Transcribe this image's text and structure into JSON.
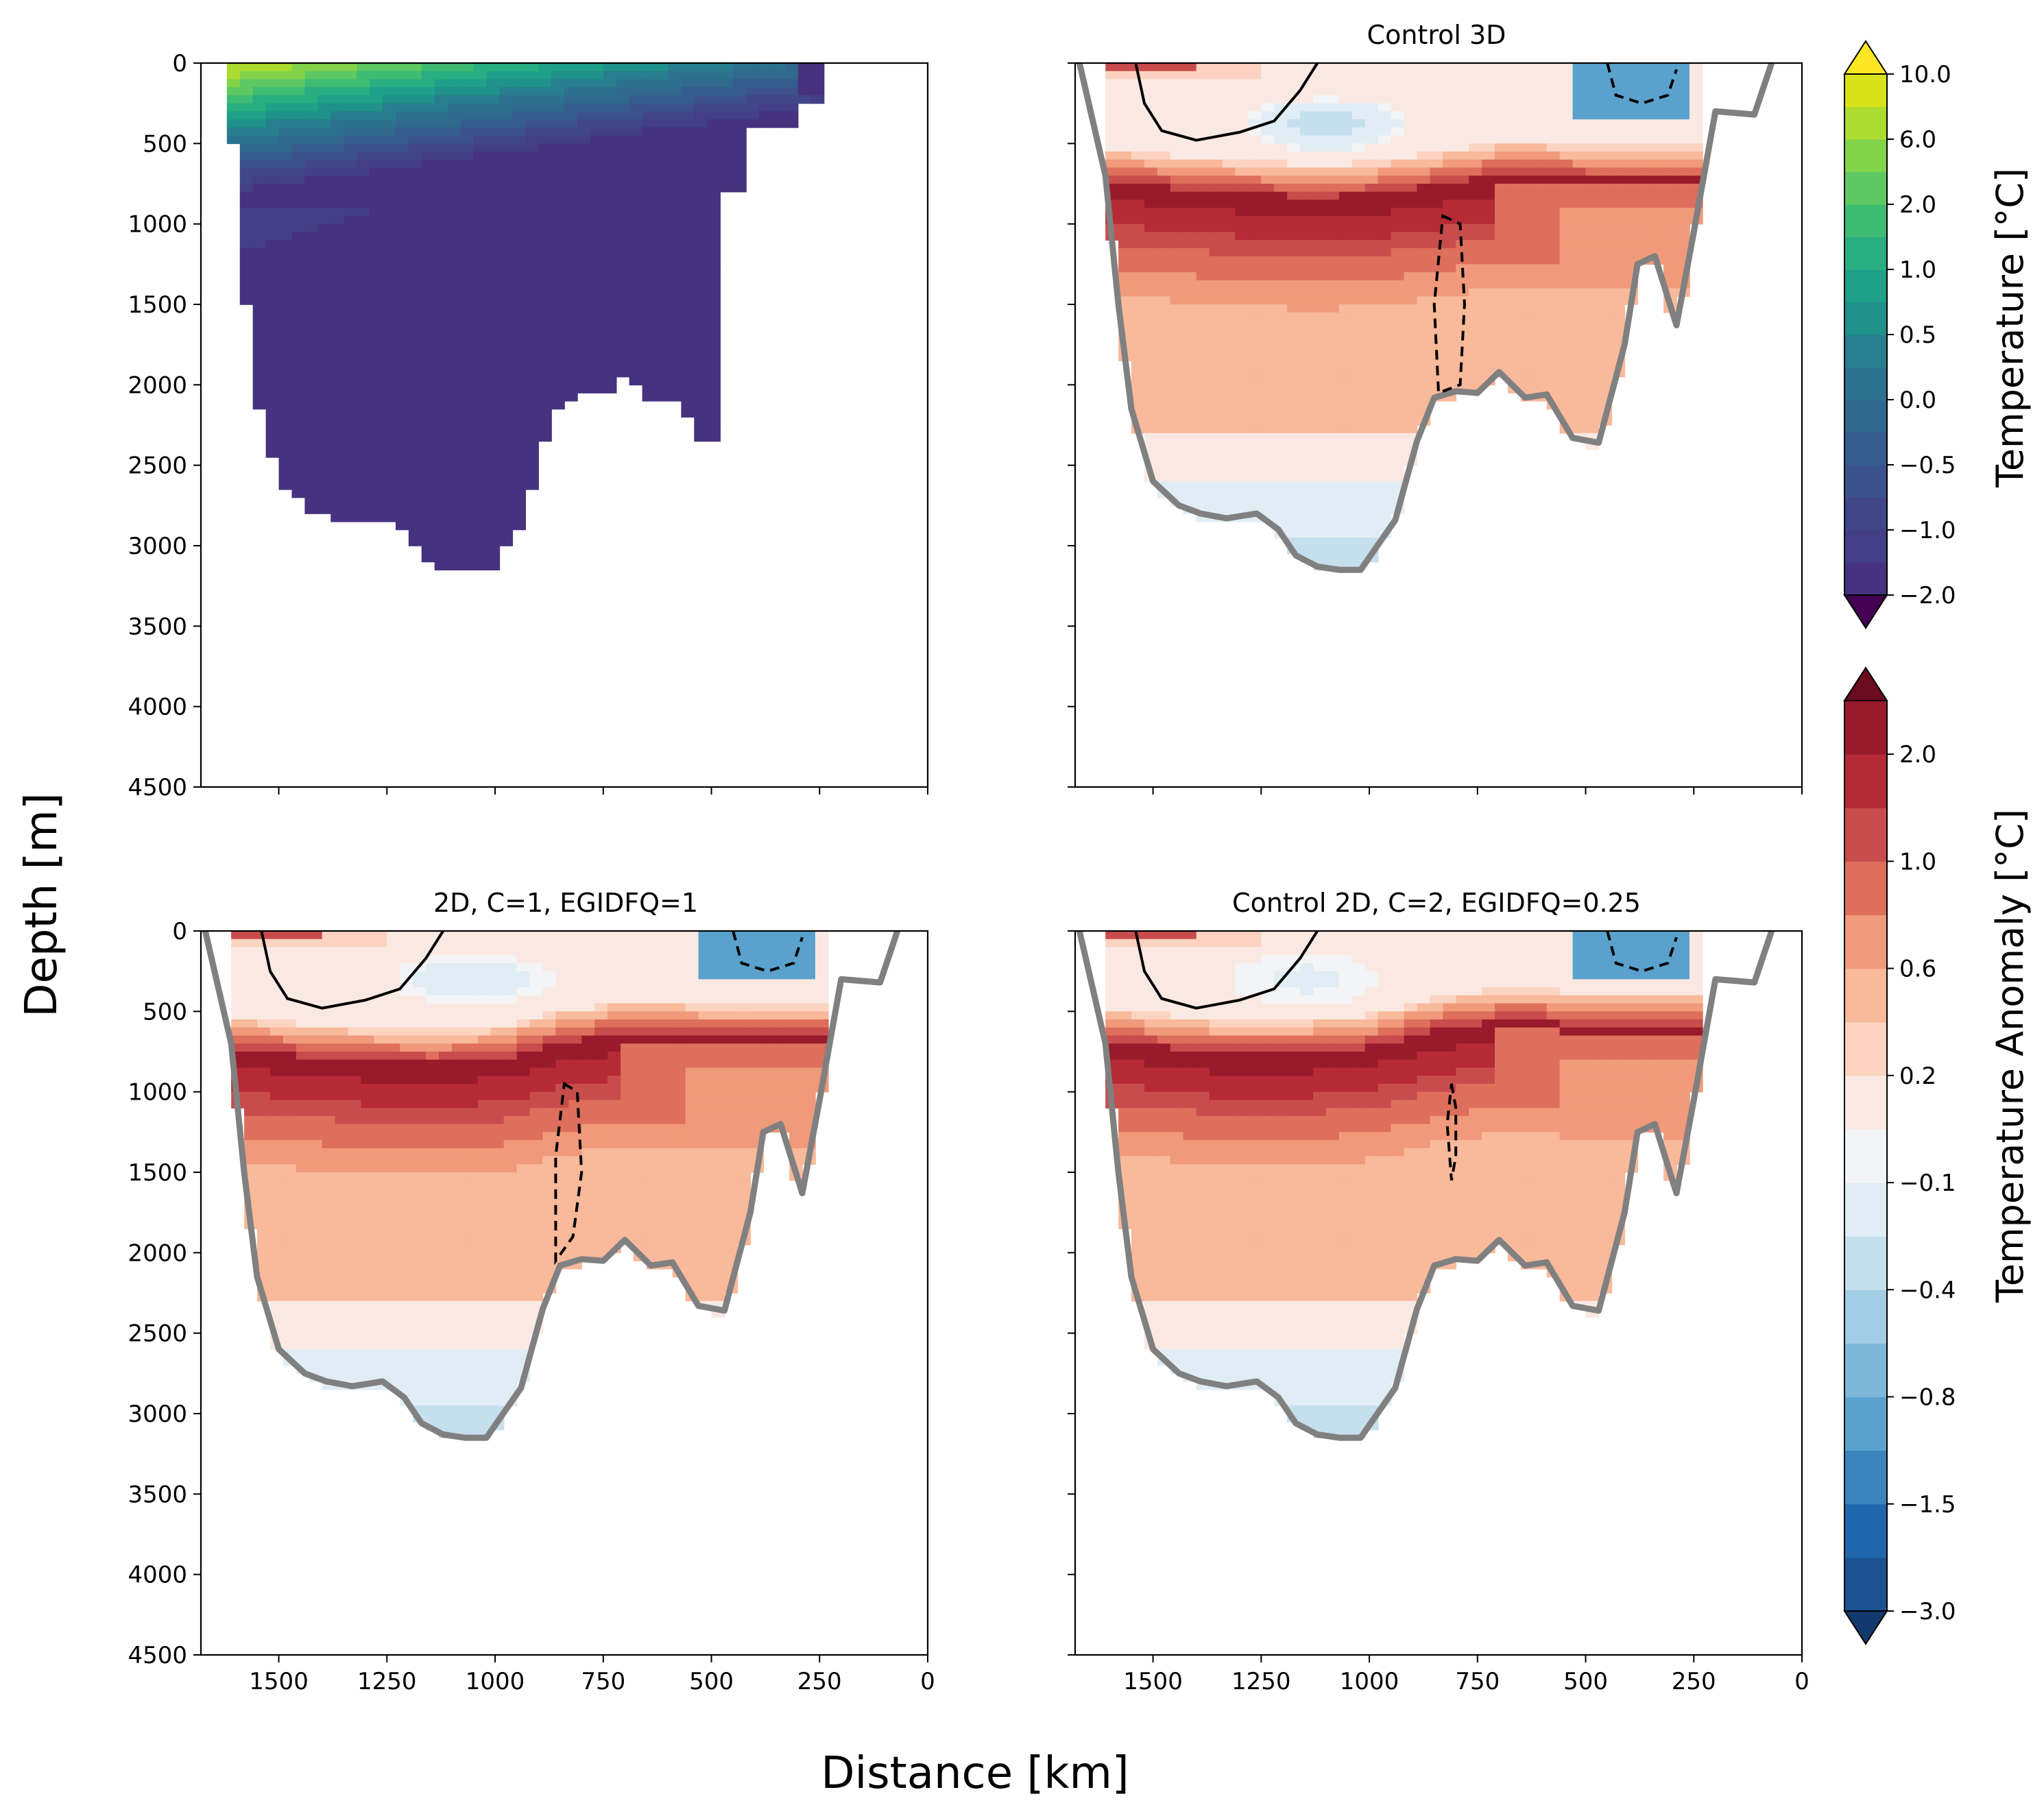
{
  "figure": {
    "supxlabel": "Distance [km]",
    "supylabel": "Depth [m]"
  },
  "chart_data": [
    {
      "type": "heatmap",
      "panel": "top-left",
      "title": "",
      "variable": "Temperature",
      "xlim": [
        1680,
        0
      ],
      "ylim": [
        4500,
        0
      ],
      "xticks": [
        1500,
        1250,
        1000,
        750,
        500,
        250,
        0
      ],
      "yticks": [
        0,
        500,
        1000,
        1500,
        2000,
        2500,
        3000,
        3500,
        4000,
        4500
      ],
      "show_ytick_labels": true,
      "show_xtick_labels": false,
      "masked_field": true,
      "colorbar": "temperature"
    },
    {
      "type": "heatmap",
      "panel": "top-right",
      "title": "Control 3D",
      "variable": "Temperature Anomaly",
      "xlim": [
        1680,
        0
      ],
      "ylim": [
        4500,
        0
      ],
      "show_ytick_labels": false,
      "show_xtick_labels": false,
      "colorbar": "anomaly",
      "warm_core": {
        "x": [
          1550,
          1350,
          1150,
          1000,
          850,
          700,
          600,
          500
        ],
        "depth": [
          750,
          800,
          830,
          820,
          760,
          700,
          700,
          720
        ]
      },
      "cold_lens": {
        "x_center": 1100,
        "depth_center": 380,
        "value": -0.6
      },
      "cold_surface_east": {
        "x_from": 520,
        "x_to": 250,
        "depth_to": 350,
        "value": -1.5
      },
      "dashed_contour": {
        "x": [
          830,
          790,
          780,
          790,
          840,
          850
        ],
        "depth": [
          950,
          1000,
          1500,
          2000,
          2050,
          1500
        ]
      }
    },
    {
      "type": "heatmap",
      "panel": "bottom-left",
      "title": "2D, C=1, EGIDFQ=1",
      "variable": "Temperature Anomaly",
      "xlim": [
        1680,
        0
      ],
      "ylim": [
        4500,
        0
      ],
      "show_ytick_labels": true,
      "show_xtick_labels": true,
      "colorbar": "anomaly",
      "warm_core": {
        "x": [
          1550,
          1350,
          1150,
          1000,
          850,
          700,
          600,
          500
        ],
        "depth": [
          750,
          800,
          820,
          800,
          700,
          640,
          640,
          660
        ]
      },
      "cold_lens": {
        "x_center": 1050,
        "depth_center": 300,
        "value": -0.4
      },
      "cold_surface_east": {
        "x_from": 520,
        "x_to": 250,
        "depth_to": 300,
        "value": -1.5
      },
      "dashed_contour": {
        "x": [
          840,
          810,
          800,
          820,
          860,
          860
        ],
        "depth": [
          950,
          1000,
          1500,
          1900,
          2050,
          1400
        ]
      }
    },
    {
      "type": "heatmap",
      "panel": "bottom-right",
      "title": "Control 2D, C=2, EGIDFQ=0.25",
      "variable": "Temperature Anomaly",
      "xlim": [
        1680,
        0
      ],
      "ylim": [
        4500,
        0
      ],
      "show_ytick_labels": false,
      "show_xtick_labels": true,
      "colorbar": "anomaly",
      "warm_core": {
        "x": [
          1550,
          1350,
          1150,
          1000,
          850,
          700,
          600,
          500
        ],
        "depth": [
          700,
          760,
          760,
          720,
          620,
          560,
          560,
          600
        ]
      },
      "cold_lens": {
        "x_center": 1150,
        "depth_center": 300,
        "value": -0.3
      },
      "cold_surface_east": {
        "x_from": 520,
        "x_to": 250,
        "depth_to": 300,
        "value": -1.5
      },
      "dashed_contour": {
        "x": [
          810,
          800,
          800,
          810,
          820
        ],
        "depth": [
          950,
          1100,
          1400,
          1550,
          1200
        ]
      }
    }
  ],
  "bathymetry_km_m": [
    [
      1670,
      0
    ],
    [
      1610,
      700
    ],
    [
      1580,
      1500
    ],
    [
      1550,
      2150
    ],
    [
      1500,
      2600
    ],
    [
      1440,
      2750
    ],
    [
      1390,
      2800
    ],
    [
      1330,
      2830
    ],
    [
      1260,
      2800
    ],
    [
      1210,
      2900
    ],
    [
      1170,
      3060
    ],
    [
      1120,
      3130
    ],
    [
      1070,
      3150
    ],
    [
      1020,
      3150
    ],
    [
      940,
      2840
    ],
    [
      890,
      2350
    ],
    [
      850,
      2080
    ],
    [
      800,
      2040
    ],
    [
      750,
      2050
    ],
    [
      700,
      1920
    ],
    [
      640,
      2080
    ],
    [
      590,
      2060
    ],
    [
      530,
      2330
    ],
    [
      470,
      2360
    ],
    [
      410,
      1750
    ],
    [
      380,
      1250
    ],
    [
      340,
      1200
    ],
    [
      290,
      1630
    ],
    [
      250,
      1050
    ],
    [
      200,
      300
    ],
    [
      110,
      320
    ],
    [
      70,
      0
    ]
  ],
  "colorbars": {
    "temperature": {
      "label": "Temperature [°C]",
      "colors": [
        "#46327e",
        "#433e85",
        "#404688",
        "#3b528b",
        "#365c8d",
        "#31688e",
        "#2c728e",
        "#277f8e",
        "#21918c",
        "#1fa088",
        "#28ae80",
        "#3fbc73",
        "#5ec962",
        "#84d44b",
        "#addc30",
        "#d8e219"
      ],
      "under": "#440154",
      "over": "#fde725",
      "ticks": [
        {
          "i": 0,
          "label": "−2.0"
        },
        {
          "i": 2,
          "label": "−1.0"
        },
        {
          "i": 4,
          "label": "−0.5"
        },
        {
          "i": 6,
          "label": "0.0"
        },
        {
          "i": 8,
          "label": "0.5"
        },
        {
          "i": 10,
          "label": "1.0"
        },
        {
          "i": 12,
          "label": "2.0"
        },
        {
          "i": 14,
          "label": "6.0"
        },
        {
          "i": 16,
          "label": "10.0"
        }
      ]
    },
    "anomaly": {
      "label": "Temperature Anomaly [°C]",
      "colors": [
        "#1a5290",
        "#2166ac",
        "#3a84bb",
        "#5aa2cd",
        "#7eb8d8",
        "#a3cde4",
        "#c6dfed",
        "#e1edf4",
        "#f3f4f6",
        "#fae9e2",
        "#fcd3c0",
        "#f9b99b",
        "#f09a7b",
        "#dd6f5c",
        "#c94c4c",
        "#b52a35",
        "#991a2b"
      ],
      "under": "#133a6d",
      "over": "#6a0b20",
      "ticks": [
        {
          "i": 0,
          "label": "−3.0"
        },
        {
          "i": 2,
          "label": "−1.5"
        },
        {
          "i": 4,
          "label": "−0.8"
        },
        {
          "i": 6,
          "label": "−0.4"
        },
        {
          "i": 8,
          "label": "−0.1"
        },
        {
          "i": 10,
          "label": "0.2"
        },
        {
          "i": 12,
          "label": "0.6"
        },
        {
          "i": 14,
          "label": "1.0"
        },
        {
          "i": 16,
          "label": "2.0"
        }
      ]
    }
  }
}
